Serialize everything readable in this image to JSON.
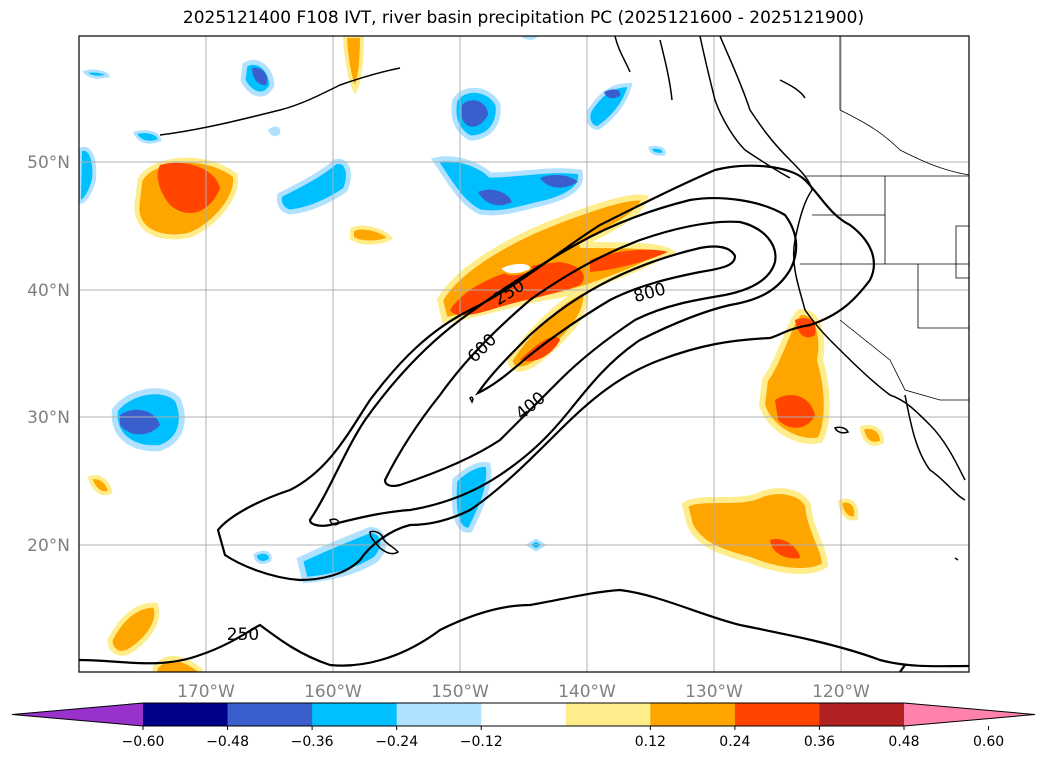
{
  "title": "2025121400 F108 IVT, river basin precipitation PC (2025121600 - 2025121900)",
  "lat_labels": [
    "50°N",
    "40°N",
    "30°N",
    "20°N"
  ],
  "lon_labels": [
    "170°W",
    "160°W",
    "150°W",
    "140°W",
    "130°W",
    "120°W"
  ],
  "contour_labels": [
    "250",
    "600",
    "800",
    "400",
    "250"
  ],
  "colorbar": {
    "ticks": [
      "−0.60",
      "−0.48",
      "−0.36",
      "−0.24",
      "−0.12",
      "0.12",
      "0.24",
      "0.36",
      "0.48",
      "0.60"
    ],
    "colors": [
      "#9932cc",
      "#00008b",
      "#3a5fcd",
      "#00bfff",
      "#b0e2ff",
      "#ffffff",
      "#ffec8b",
      "#ffa500",
      "#ff4500",
      "#b22222",
      "#ff82ab"
    ]
  },
  "ivt_contour_levels": [
    250,
    400,
    600,
    800
  ]
}
